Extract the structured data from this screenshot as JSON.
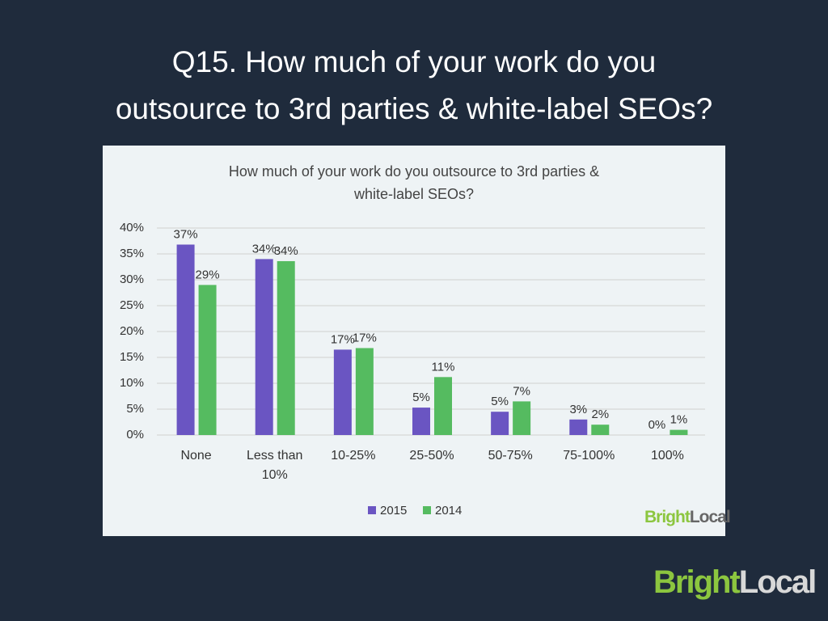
{
  "slide_title": "Q15. How much of your work do you\noutsource to 3rd parties & white-label SEOs?",
  "chart_data": {
    "type": "bar",
    "title": "How much of your work do you outsource to 3rd parties &\nwhite-label SEOs?",
    "categories": [
      "None",
      "Less than\n10%",
      "10-25%",
      "25-50%",
      "50-75%",
      "75-100%",
      "100%"
    ],
    "series": [
      {
        "name": "2015",
        "color": "#6a55c2",
        "values": [
          36.8,
          34,
          16.5,
          5.3,
          4.5,
          3,
          0
        ],
        "value_labels": [
          "37%",
          "34%",
          "17%",
          "5%",
          "5%",
          "3%",
          "0%"
        ]
      },
      {
        "name": "2014",
        "color": "#55bb60",
        "values": [
          29,
          33.6,
          16.8,
          11.2,
          6.5,
          2,
          1
        ],
        "value_labels": [
          "29%",
          "34%",
          "17%",
          "11%",
          "7%",
          "2%",
          "1%"
        ]
      }
    ],
    "ylim": [
      0,
      40
    ],
    "yticks": [
      {
        "value": 0,
        "label": "0%"
      },
      {
        "value": 5,
        "label": "5%"
      },
      {
        "value": 10,
        "label": "10%"
      },
      {
        "value": 15,
        "label": "15%"
      },
      {
        "value": 20,
        "label": "20%"
      },
      {
        "value": 25,
        "label": "25%"
      },
      {
        "value": 30,
        "label": "30%"
      },
      {
        "value": 35,
        "label": "35%"
      },
      {
        "value": 40,
        "label": "40%"
      }
    ],
    "grid": true,
    "legend": "bottom"
  },
  "logo": [
    "Bright",
    "Local"
  ]
}
